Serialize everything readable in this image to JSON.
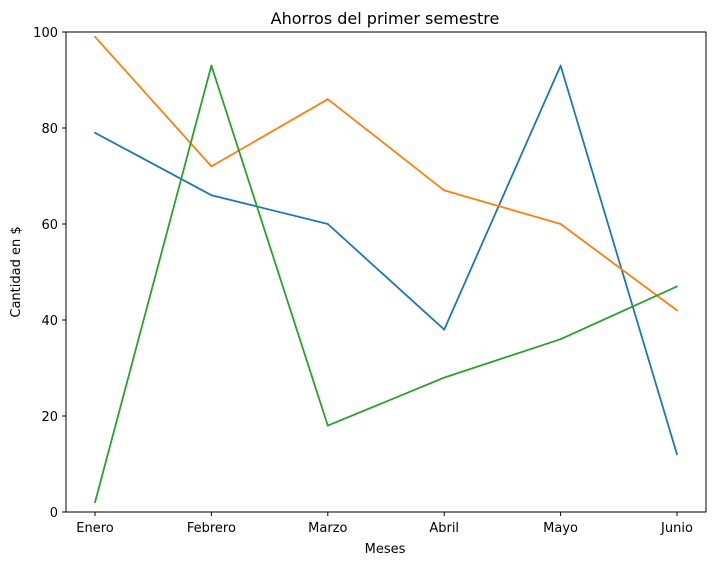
{
  "chart_data": {
    "type": "line",
    "title": "Ahorros del primer semestre",
    "xlabel": "Meses",
    "ylabel": "Cantidad en $",
    "categories": [
      "Enero",
      "Febrero",
      "Marzo",
      "Abril",
      "Mayo",
      "Junio"
    ],
    "ylim": [
      0,
      100
    ],
    "yticks": [
      0,
      20,
      40,
      60,
      80,
      100
    ],
    "grid": false,
    "legend": "none",
    "series": [
      {
        "color": "#1f77b4",
        "values": [
          79,
          66,
          60,
          38,
          93,
          12
        ]
      },
      {
        "color": "#ff7f0e",
        "values": [
          99,
          72,
          86,
          67,
          60,
          42
        ]
      },
      {
        "color": "#2ca02c",
        "values": [
          2,
          93,
          18,
          28,
          36,
          47
        ]
      }
    ]
  }
}
